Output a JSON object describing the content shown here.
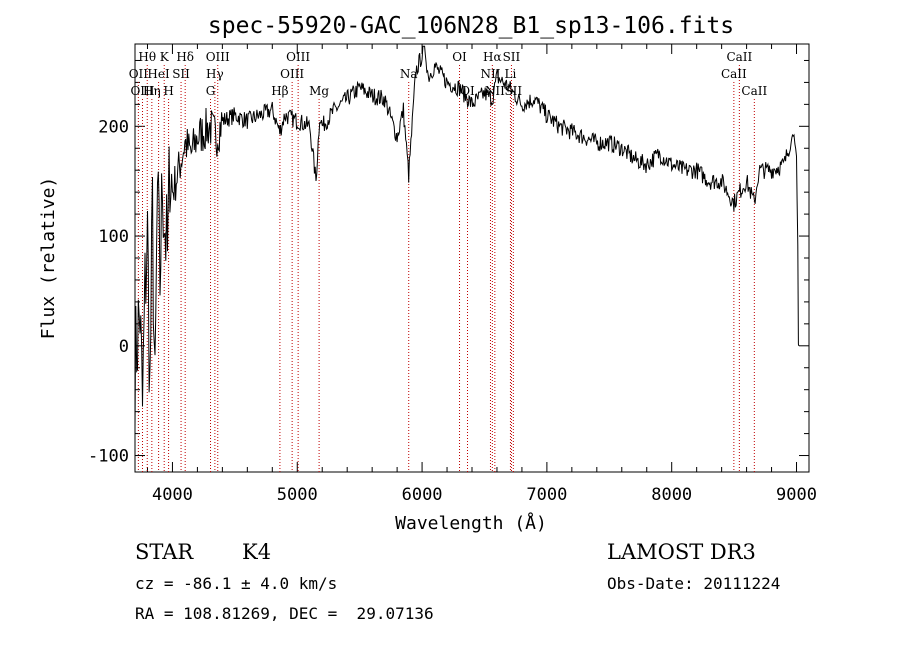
{
  "chart_data": {
    "type": "line",
    "title": "spec-55920-GAC_106N28_B1_sp13-106.fits",
    "xlabel": "Wavelength (Å)",
    "ylabel": "Flux (relative)",
    "xlim": [
      3700,
      9100
    ],
    "ylim": [
      -115,
      275
    ],
    "xticks": [
      4000,
      5000,
      6000,
      7000,
      8000,
      9000
    ],
    "yticks": [
      -100,
      0,
      100,
      200
    ],
    "grid": false,
    "series": [
      {
        "name": "flux",
        "x": [
          3700,
          3720,
          3740,
          3760,
          3780,
          3800,
          3820,
          3840,
          3860,
          3880,
          3900,
          3920,
          3940,
          3960,
          3980,
          4000,
          4050,
          4100,
          4150,
          4200,
          4250,
          4300,
          4350,
          4400,
          4500,
          4600,
          4700,
          4800,
          4860,
          4900,
          5000,
          5100,
          5150,
          5180,
          5200,
          5300,
          5400,
          5500,
          5600,
          5700,
          5800,
          5850,
          5893,
          5950,
          6000,
          6020,
          6050,
          6100,
          6200,
          6300,
          6400,
          6500,
          6563,
          6600,
          6700,
          6800,
          6900,
          7000,
          7100,
          7200,
          7300,
          7400,
          7500,
          7600,
          7700,
          7800,
          7900,
          8000,
          8100,
          8200,
          8300,
          8400,
          8498,
          8542,
          8600,
          8662,
          8700,
          8800,
          8900,
          8950,
          8980,
          9000,
          9010,
          9015,
          9020
        ],
        "y": [
          -20,
          10,
          30,
          -60,
          50,
          100,
          -40,
          120,
          -55,
          140,
          60,
          150,
          110,
          80,
          170,
          140,
          160,
          185,
          175,
          190,
          195,
          200,
          190,
          205,
          210,
          205,
          210,
          215,
          195,
          210,
          205,
          200,
          150,
          210,
          200,
          215,
          225,
          235,
          228,
          225,
          190,
          215,
          155,
          250,
          265,
          275,
          245,
          255,
          240,
          235,
          220,
          230,
          225,
          245,
          235,
          220,
          225,
          210,
          200,
          195,
          190,
          185,
          185,
          180,
          170,
          165,
          175,
          165,
          160,
          160,
          150,
          150,
          130,
          140,
          150,
          130,
          160,
          160,
          165,
          185,
          195,
          170,
          90,
          0,
          0
        ]
      }
    ],
    "lines": [
      {
        "label": "Hθ",
        "x": 3798,
        "row": 0
      },
      {
        "label": "K",
        "x": 3934,
        "row": 0
      },
      {
        "label": "Hδ",
        "x": 4102,
        "row": 0
      },
      {
        "label": "OII",
        "x": 3727,
        "row": 1
      },
      {
        "label": "HeI",
        "x": 3889,
        "row": 1
      },
      {
        "label": "SII",
        "x": 4069,
        "row": 1
      },
      {
        "label": "OIII",
        "x": 3760,
        "row": 2
      },
      {
        "label": "Hη",
        "x": 3835,
        "row": 2
      },
      {
        "label": "H",
        "x": 3969,
        "row": 2
      },
      {
        "label": "OIII",
        "x": 4363,
        "row": 0
      },
      {
        "label": "Hγ",
        "x": 4340,
        "row": 1
      },
      {
        "label": "G",
        "x": 4305,
        "row": 2
      },
      {
        "label": "OIII",
        "x": 5007,
        "row": 0
      },
      {
        "label": "OIII",
        "x": 4959,
        "row": 1
      },
      {
        "label": "Hβ",
        "x": 4861,
        "row": 2
      },
      {
        "label": "Mg",
        "x": 5175,
        "row": 2
      },
      {
        "label": "Na",
        "x": 5893,
        "row": 1
      },
      {
        "label": "OI",
        "x": 6300,
        "row": 0
      },
      {
        "label": "OI",
        "x": 6364,
        "row": 2
      },
      {
        "label": "Hα",
        "x": 6563,
        "row": 0
      },
      {
        "label": "SII",
        "x": 6716,
        "row": 0
      },
      {
        "label": "NII",
        "x": 6548,
        "row": 1
      },
      {
        "label": "Li",
        "x": 6708,
        "row": 1
      },
      {
        "label": "NII",
        "x": 6583,
        "row": 2
      },
      {
        "label": "SII",
        "x": 6731,
        "row": 2
      },
      {
        "label": "CaII",
        "x": 8542,
        "row": 0
      },
      {
        "label": "CaII",
        "x": 8498,
        "row": 1
      },
      {
        "label": "CaII",
        "x": 8662,
        "row": 2
      }
    ]
  },
  "info": {
    "class": "STAR",
    "subclass": "K4",
    "cz": "cz = -86.1 ± 4.0 km/s",
    "coords": "RA = 108.81269, DEC =  29.07136",
    "survey": "LAMOST DR3",
    "obs_date": "Obs-Date: 20111224"
  }
}
